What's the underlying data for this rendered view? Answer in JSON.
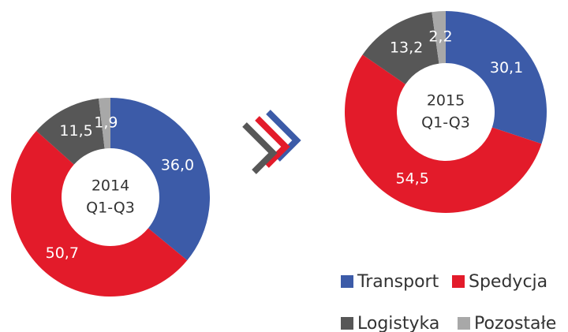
{
  "chart_data": [
    {
      "type": "pie",
      "donut": true,
      "center_label": [
        "2014",
        "Q1-Q3"
      ],
      "categories": [
        "Transport",
        "Spedycja",
        "Logistyka",
        "Pozostałe"
      ],
      "values": [
        36.0,
        50.7,
        11.5,
        1.9
      ],
      "value_labels": [
        "36,0",
        "50,7",
        "11,5",
        "1,9"
      ],
      "colors": [
        "#3c5ba8",
        "#e31b2a",
        "#575757",
        "#a8a8a8"
      ]
    },
    {
      "type": "pie",
      "donut": true,
      "center_label": [
        "2015",
        "Q1-Q3"
      ],
      "categories": [
        "Transport",
        "Spedycja",
        "Logistyka",
        "Pozostałe"
      ],
      "values": [
        30.1,
        54.5,
        13.2,
        2.2
      ],
      "value_labels": [
        "30,1",
        "54,5",
        "13,2",
        "2,2"
      ],
      "colors": [
        "#3c5ba8",
        "#e31b2a",
        "#575757",
        "#a8a8a8"
      ]
    }
  ]
}
